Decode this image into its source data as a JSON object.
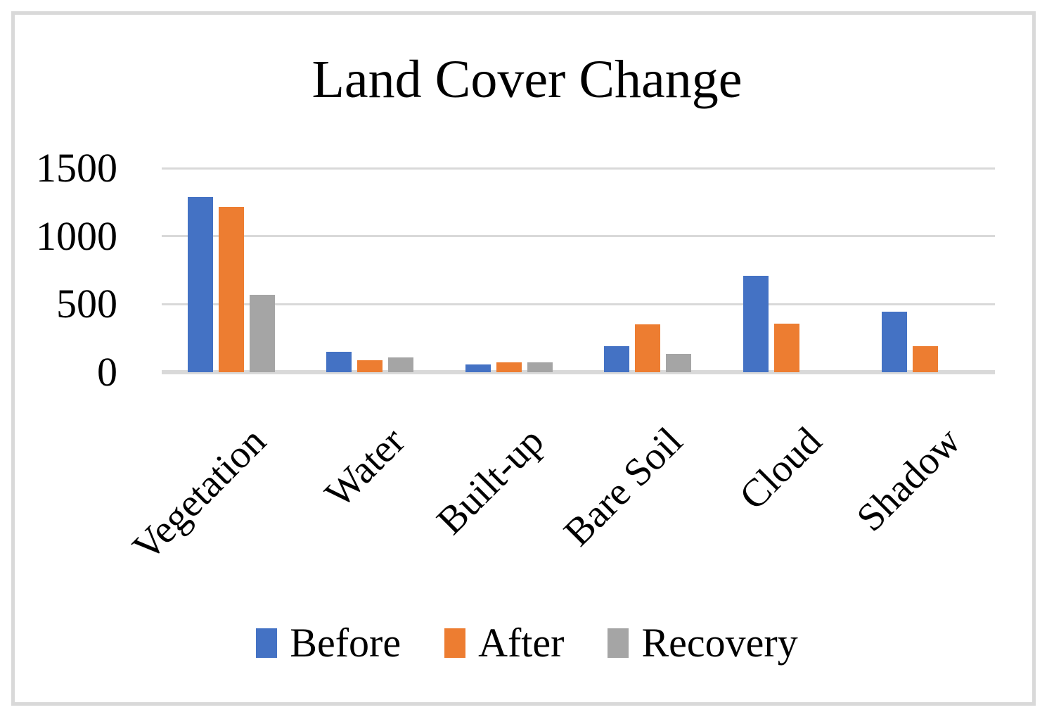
{
  "figure": {
    "background": "#ffffff",
    "frame_border_color": "#d9d9d9"
  },
  "chart_data": {
    "type": "bar",
    "title": "Land Cover Change",
    "categories": [
      "Vegetation",
      "Water",
      "Built-up",
      "Bare Soil",
      "Cloud",
      "Shadow"
    ],
    "series": [
      {
        "name": "Before",
        "color": "#4472C4",
        "values": [
          1290,
          150,
          55,
          190,
          710,
          445
        ]
      },
      {
        "name": "After",
        "color": "#ED7D31",
        "values": [
          1215,
          90,
          70,
          350,
          355,
          190
        ]
      },
      {
        "name": "Recovery",
        "color": "#A5A5A5",
        "values": [
          570,
          110,
          75,
          135,
          0,
          0
        ]
      }
    ],
    "xlabel": "",
    "ylabel": "",
    "ylim": [
      0,
      1500
    ],
    "yticks": [
      0,
      500,
      1000,
      1500
    ],
    "grid": true,
    "gridline_color": "#d9d9d9",
    "axis_line_color": "#d9d9d9",
    "legend_position": "bottom",
    "x_label_rotation_deg": 45
  }
}
